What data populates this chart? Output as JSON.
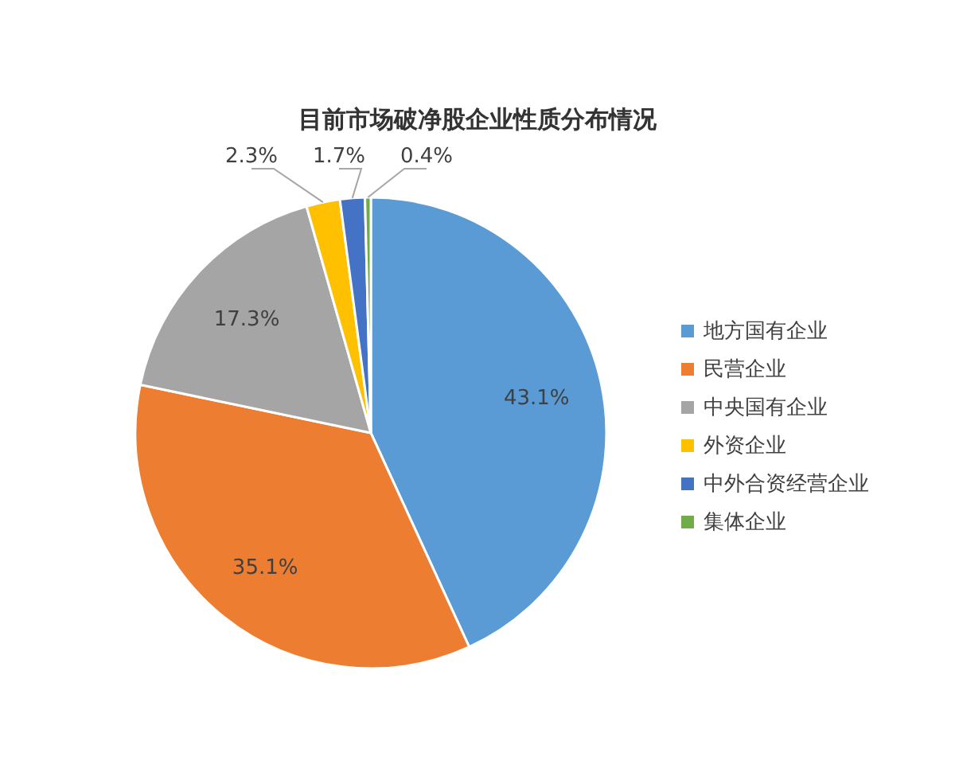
{
  "chart_data": {
    "type": "pie",
    "title": "目前市场破净股企业性质分布情况",
    "categories": [
      "地方国有企业",
      "民营企业",
      "中央国有企业",
      "外资企业",
      "中外合资经营企业",
      "集体企业"
    ],
    "values": [
      43.1,
      35.1,
      17.3,
      2.3,
      1.7,
      0.4
    ],
    "colors": [
      "#5b9bd5",
      "#ed7d31",
      "#a5a5a5",
      "#ffc000",
      "#4472c4",
      "#70ad47"
    ],
    "value_labels": [
      "43.1%",
      "35.1%",
      "17.3%",
      "2.3%",
      "1.7%",
      "0.4%"
    ],
    "legend": "right"
  }
}
